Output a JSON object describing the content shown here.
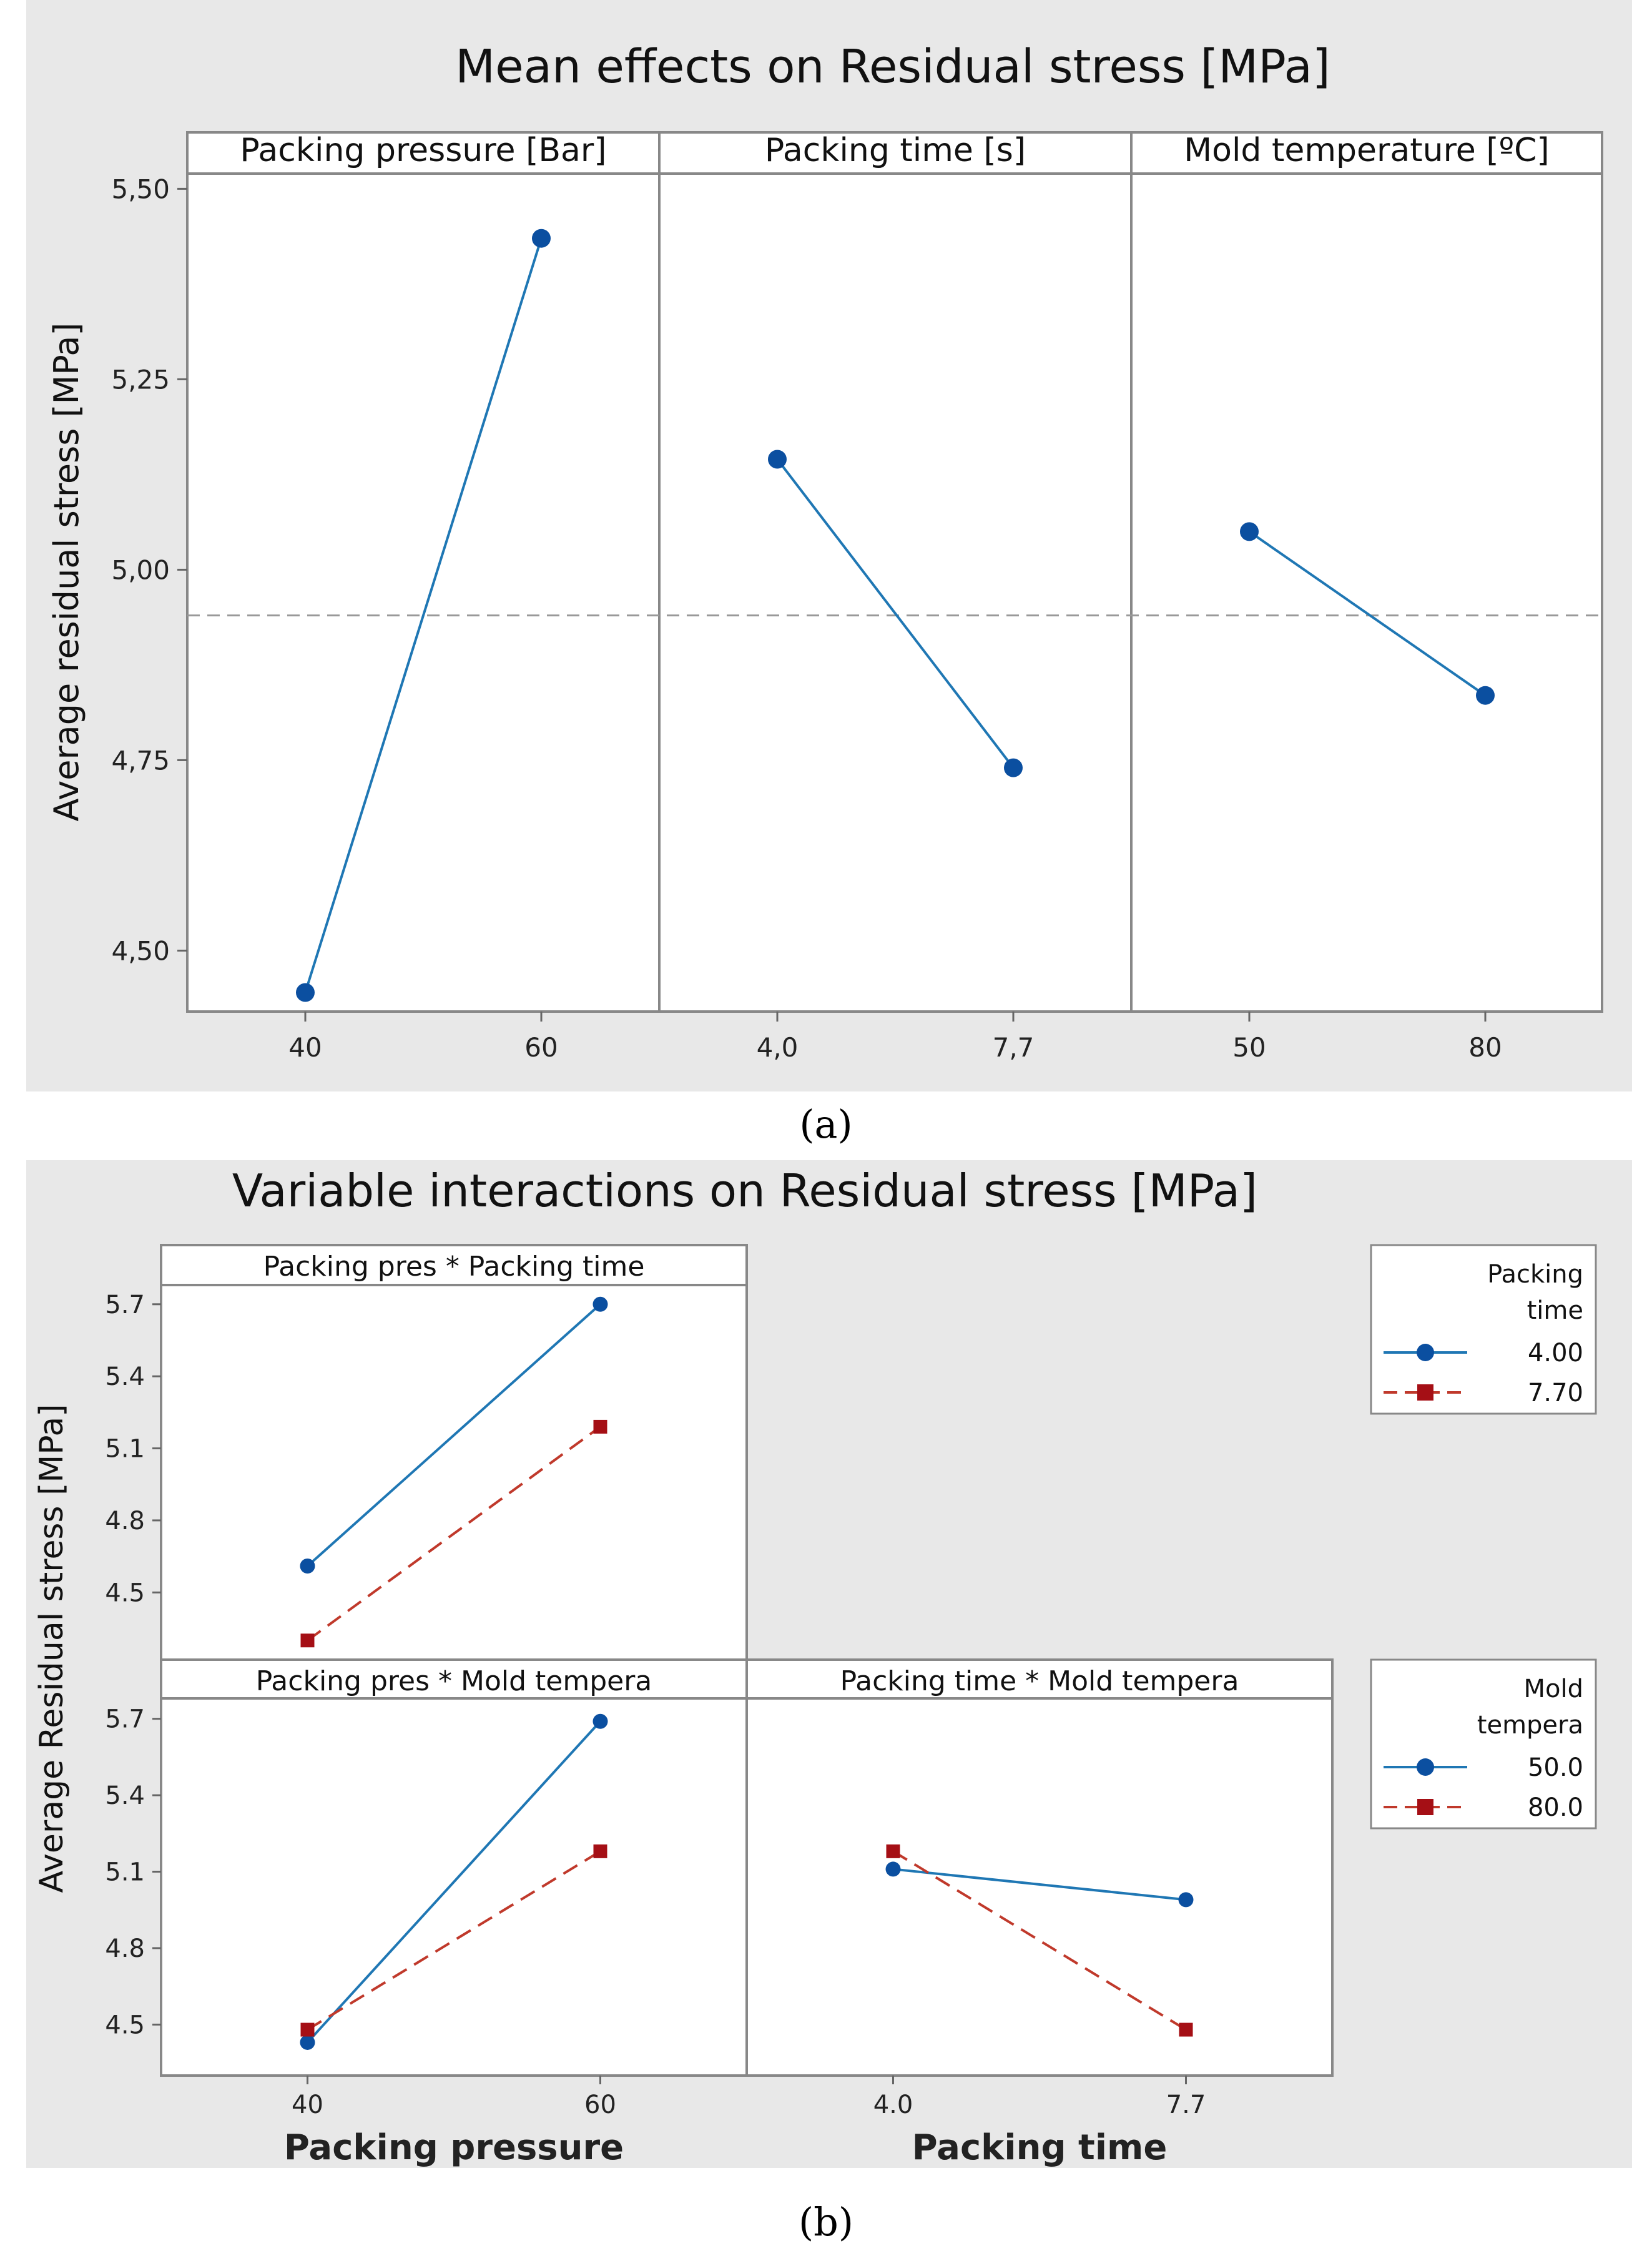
{
  "figure": {
    "caption_a": "(a)",
    "caption_b": "(b)"
  },
  "colors": {
    "panel_bg": "#e8e8e8",
    "plot_bg": "#ffffff",
    "frame": "#888888",
    "series_blue": "#1f77b4",
    "marker_blue": "#0b4fa0",
    "series_red": "#c0392b",
    "marker_red": "#a50f15",
    "mean_line": "#999999"
  },
  "chart_data": [
    {
      "id": "a",
      "type": "line",
      "title": "Mean effects on Residual stress [MPa]",
      "ylabel": "Average residual stress [MPa]",
      "xlabel": "",
      "ylim": [
        4.42,
        5.52
      ],
      "yticks": [
        "4,50",
        "4,75",
        "5,00",
        "5,25",
        "5,50"
      ],
      "ytick_values": [
        4.5,
        4.75,
        5.0,
        5.25,
        5.5
      ],
      "overall_mean": 4.94,
      "grid": false,
      "facets": [
        {
          "label": "Packing pressure [Bar]",
          "x": [
            "40",
            "60"
          ],
          "values": [
            4.445,
            5.435
          ]
        },
        {
          "label": "Packing time [s]",
          "x": [
            "4,0",
            "7,7"
          ],
          "values": [
            5.145,
            4.74
          ]
        },
        {
          "label": "Mold temperature [ºC]",
          "x": [
            "50",
            "80"
          ],
          "values": [
            5.05,
            4.835
          ]
        }
      ]
    },
    {
      "id": "b",
      "type": "line",
      "title": "Variable interactions on Residual stress [MPa]",
      "ylabel": "Average Residual stress [MPa]",
      "ylim": [
        4.3,
        5.78
      ],
      "yticks": [
        "4.5",
        "4.8",
        "5.1",
        "5.4",
        "5.7"
      ],
      "ytick_values": [
        4.5,
        4.8,
        5.1,
        5.4,
        5.7
      ],
      "grid": false,
      "xlabels": [
        "Packing pressure",
        "Packing time"
      ],
      "xticks_pressure": [
        "40",
        "60"
      ],
      "xticks_time": [
        "4.0",
        "7.7"
      ],
      "facets": [
        {
          "label": "Packing pres * Packing time",
          "ylim": [
            4.22,
            5.78
          ],
          "series": [
            {
              "name": "4.00",
              "values": [
                4.61,
                5.7
              ]
            },
            {
              "name": "7.70",
              "values": [
                4.3,
                5.19
              ]
            }
          ]
        },
        {
          "label": "Packing pres * Mold tempera",
          "ylim": [
            4.3,
            5.78
          ],
          "series": [
            {
              "name": "50.0",
              "values": [
                4.43,
                5.69
              ]
            },
            {
              "name": "80.0",
              "values": [
                4.48,
                5.18
              ]
            }
          ]
        },
        {
          "label": "Packing time * Mold tempera",
          "ylim": [
            4.3,
            5.78
          ],
          "series": [
            {
              "name": "50.0",
              "values": [
                5.11,
                4.99
              ]
            },
            {
              "name": "80.0",
              "values": [
                5.18,
                4.48
              ]
            }
          ]
        }
      ],
      "legends": [
        {
          "title_line1": "Packing",
          "title_line2": "time",
          "entries": [
            "4.00",
            "7.70"
          ]
        },
        {
          "title_line1": "Mold",
          "title_line2": "tempera",
          "entries": [
            "50.0",
            "80.0"
          ]
        }
      ]
    }
  ]
}
